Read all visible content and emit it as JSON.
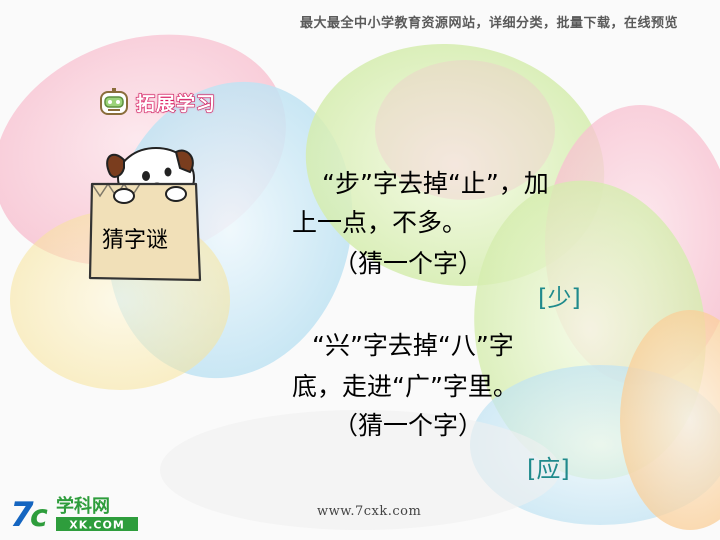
{
  "header": {
    "text": "最大最全中小学教育资源网站，详细分类，批量下载，在线预览"
  },
  "section": {
    "title": "拓展学习",
    "icon": "robot-head-icon"
  },
  "badge": {
    "label": "猜字谜",
    "icon": "puppy-in-bag-icon"
  },
  "riddles": [
    {
      "lines": [
        "“步”字去掉“止”，加",
        "上一点，不多。",
        "（猜一个字）"
      ],
      "answer": "[少]"
    },
    {
      "lines": [
        "“兴”字去掉“八”字",
        "底，走进“广”字里。",
        "（猜一个字）"
      ],
      "answer": "[应]"
    }
  ],
  "footer": {
    "url": "www.7cxk.com"
  },
  "logo": {
    "mark": "7c",
    "name": "学科网",
    "domain": "XK.COM"
  },
  "colors": {
    "answer": "#1f8a8c",
    "section_title": "#c2185b",
    "logo_blue": "#1565c0",
    "logo_green": "#2e9d3c"
  }
}
